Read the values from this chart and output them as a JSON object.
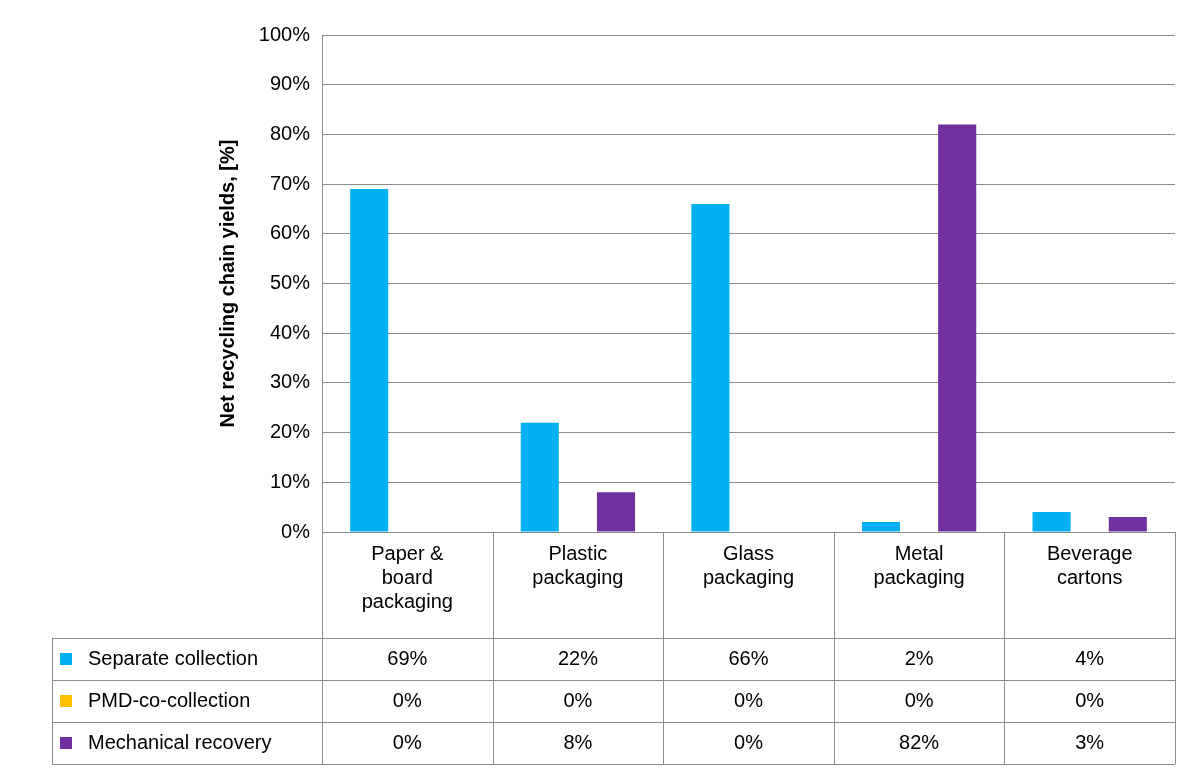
{
  "chart_data": {
    "type": "bar",
    "ylabel": "Net recycling chain yields, [%]",
    "categories": [
      "Paper & board packaging",
      "Plastic packaging",
      "Glass packaging",
      "Metal packaging",
      "Beverage cartons"
    ],
    "series": [
      {
        "name": "Separate collection",
        "color": "#00b0f0",
        "values": [
          69,
          22,
          66,
          2,
          4
        ],
        "value_labels": [
          "69%",
          "22%",
          "66%",
          "2%",
          "4%"
        ]
      },
      {
        "name": "PMD-co-collection",
        "color": "#ffc000",
        "values": [
          0,
          0,
          0,
          0,
          0
        ],
        "value_labels": [
          "0%",
          "0%",
          "0%",
          "0%",
          "0%"
        ]
      },
      {
        "name": "Mechanical recovery",
        "color": "#7030a0",
        "values": [
          0,
          8,
          0,
          82,
          3
        ],
        "value_labels": [
          "0%",
          "8%",
          "0%",
          "82%",
          "3%"
        ]
      }
    ],
    "ylim": [
      0,
      100
    ],
    "yticks": [
      {
        "value": 0,
        "label": "0%"
      },
      {
        "value": 10,
        "label": "10%"
      },
      {
        "value": 20,
        "label": "20%"
      },
      {
        "value": 30,
        "label": "30%"
      },
      {
        "value": 40,
        "label": "40%"
      },
      {
        "value": 50,
        "label": "50%"
      },
      {
        "value": 60,
        "label": "60%"
      },
      {
        "value": 70,
        "label": "70%"
      },
      {
        "value": 80,
        "label": "80%"
      },
      {
        "value": 90,
        "label": "90%"
      },
      {
        "value": 100,
        "label": "100%"
      }
    ],
    "grid": "y",
    "legend": "bottom"
  }
}
